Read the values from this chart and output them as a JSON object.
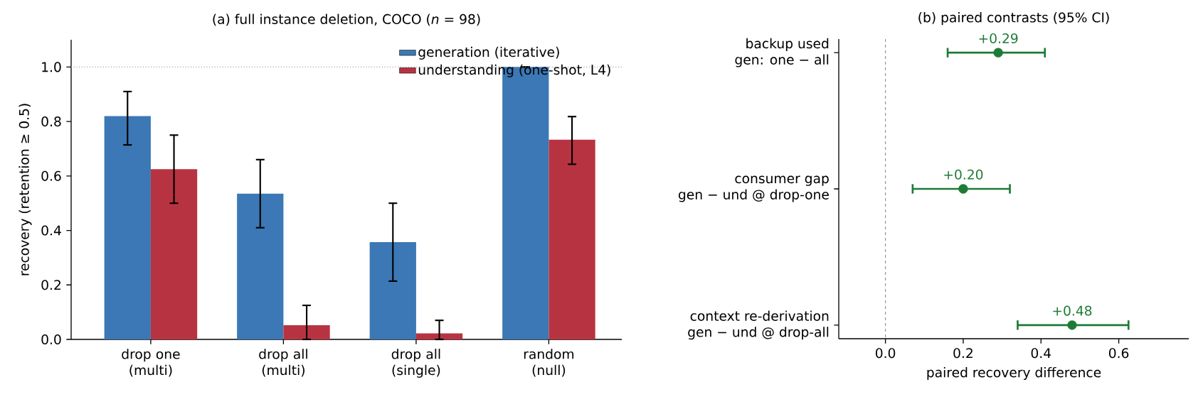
{
  "chart_data": [
    {
      "type": "bar",
      "title": "(a) full instance deletion, COCO (*n* = 98)",
      "ylabel": "recovery (retention ≥ 0.5)",
      "categories": [
        "drop one\n(multi)",
        "drop all\n(multi)",
        "drop all\n(single)",
        "random\n(null)"
      ],
      "series": [
        {
          "name": "generation (iterative)",
          "color": "#3b78b5",
          "values": [
            0.82,
            0.535,
            0.357,
            1.0
          ],
          "errors": [
            [
              0.714,
              0.91
            ],
            [
              0.41,
              0.66
            ],
            [
              0.214,
              0.5
            ],
            [
              1.0,
              1.0
            ]
          ]
        },
        {
          "name": "understanding (one-shot, L4)",
          "color": "#b83341",
          "values": [
            0.625,
            0.052,
            0.022,
            0.733
          ],
          "errors": [
            [
              0.5,
              0.75
            ],
            [
              0.0,
              0.125
            ],
            [
              0.0,
              0.07
            ],
            [
              0.643,
              0.818
            ]
          ]
        }
      ],
      "ylim": [
        0,
        1.1
      ],
      "yticks": [
        {
          "value": 0,
          "label": "0.0"
        },
        {
          "value": 0.2,
          "label": "0.2"
        },
        {
          "value": 0.4,
          "label": "0.4"
        },
        {
          "value": 0.6,
          "label": "0.6"
        },
        {
          "value": 0.8,
          "label": "0.8"
        },
        {
          "value": 1.0,
          "label": "1.0"
        }
      ],
      "ref_lines": [
        {
          "axis": "y",
          "value": 1.0,
          "color": "#999999",
          "line_style": "dotted"
        }
      ],
      "legend": "top right"
    },
    {
      "type": "scatter",
      "orientation": "horizontal",
      "title": "(b) paired contrasts (95% CI)",
      "xlabel": "paired recovery difference",
      "categories": [
        "backup used\ngen: one − all",
        "consumer gap\ngen − und @ drop-one",
        "context re-derivation\ngen − und @ drop-all"
      ],
      "values": [
        0.29,
        0.2,
        0.48
      ],
      "errors": [
        [
          0.16,
          0.41
        ],
        [
          0.07,
          0.32
        ],
        [
          0.34,
          0.625
        ]
      ],
      "value_labels": [
        "+0.29",
        "+0.20",
        "+0.48"
      ],
      "color": "#1e7b36",
      "marker": "circle",
      "xlim": [
        -0.12,
        0.78
      ],
      "xticks": [
        {
          "value": 0,
          "label": "0.0"
        },
        {
          "value": 0.2,
          "label": "0.2"
        },
        {
          "value": 0.4,
          "label": "0.4"
        },
        {
          "value": 0.6,
          "label": "0.6"
        }
      ],
      "ref_lines": [
        {
          "axis": "x",
          "value": 0,
          "color": "#888888",
          "line_style": "dashed"
        }
      ]
    }
  ]
}
